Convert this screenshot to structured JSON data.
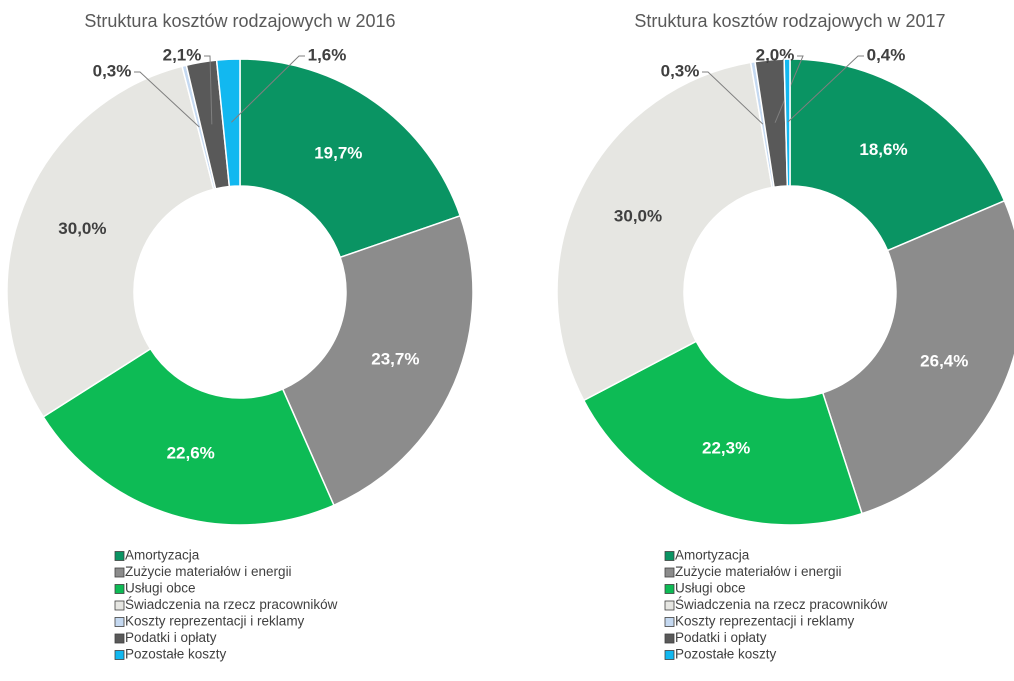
{
  "chart_data": [
    {
      "type": "donut",
      "title": "Struktura kosztów rodzajowych w 2016",
      "categories": [
        "Amortyzacja",
        "Zużycie materiałów i energii",
        "Usługi obce",
        "Świadczenia na rzecz pracowników",
        "Koszty reprezentacji i reklamy",
        "Podatki i opłaty",
        "Pozostałe koszty"
      ],
      "values": [
        19.7,
        23.7,
        22.6,
        30.0,
        0.3,
        2.1,
        1.6
      ],
      "value_labels": [
        "19,7%",
        "23,7%",
        "22,6%",
        "30,0%",
        "0,3%",
        "2,1%",
        "1,6%"
      ],
      "colors": [
        "#0a9463",
        "#8c8c8c",
        "#0dbb55",
        "#e6e6e2",
        "#c5d9f1",
        "#595959",
        "#12b8f0"
      ]
    },
    {
      "type": "donut",
      "title": "Struktura kosztów rodzajowych w 2017",
      "categories": [
        "Amortyzacja",
        "Zużycie materiałów i energii",
        "Usługi obce",
        "Świadczenia na rzecz pracowników",
        "Koszty reprezentacji i reklamy",
        "Podatki i opłaty",
        "Pozostałe koszty"
      ],
      "values": [
        18.6,
        26.4,
        22.3,
        30.0,
        0.3,
        2.0,
        0.4
      ],
      "value_labels": [
        "18,6%",
        "26,4%",
        "22,3%",
        "30,0%",
        "0,3%",
        "2,0%",
        "0,4%"
      ],
      "colors": [
        "#0a9463",
        "#8c8c8c",
        "#0dbb55",
        "#e6e6e2",
        "#c5d9f1",
        "#595959",
        "#12b8f0"
      ]
    }
  ]
}
